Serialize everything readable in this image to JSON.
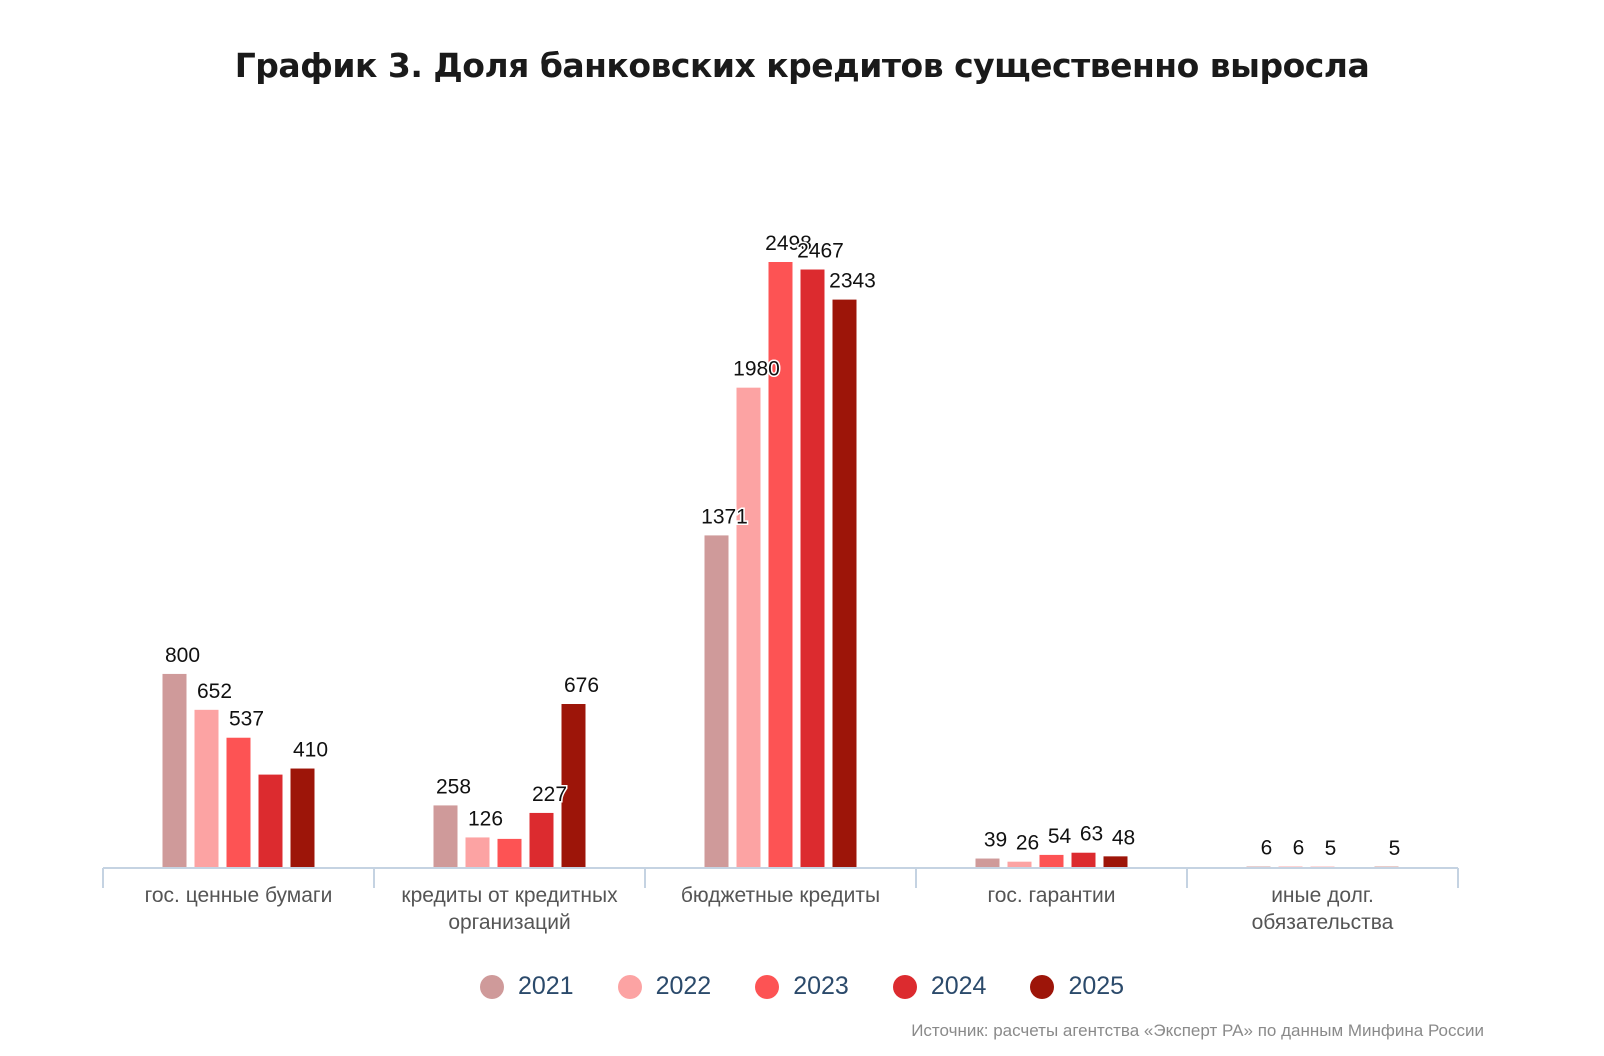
{
  "chart_data": {
    "type": "bar",
    "title": "График 3. Доля банковских кредитов существенно выросла",
    "categories": [
      [
        "гос. ценные бумаги"
      ],
      [
        "кредиты от кредитных",
        "организаций"
      ],
      [
        "бюджетные кредиты"
      ],
      [
        "гос. гарантии"
      ],
      [
        "иные долг.",
        "обязательства"
      ]
    ],
    "series": [
      {
        "name": "2021",
        "color": "#cf9a9a",
        "values": [
          800,
          258,
          1371,
          39,
          6
        ],
        "labels": [
          "800",
          "258",
          "1371",
          "39",
          "6"
        ]
      },
      {
        "name": "2022",
        "color": "#fca3a3",
        "values": [
          652,
          126,
          1980,
          26,
          6
        ],
        "labels": [
          "652",
          "126",
          "1980",
          "26",
          "6"
        ]
      },
      {
        "name": "2023",
        "color": "#fd5354",
        "values": [
          537,
          120,
          2498,
          54,
          5
        ],
        "labels": [
          "537",
          "",
          "2498",
          "54",
          "5"
        ]
      },
      {
        "name": "2024",
        "color": "#dc2b2f",
        "values": [
          385,
          227,
          2467,
          63,
          0
        ],
        "labels": [
          "",
          "227",
          "2467",
          "63",
          ""
        ]
      },
      {
        "name": "2025",
        "color": "#9d1509",
        "values": [
          410,
          676,
          2343,
          48,
          5
        ],
        "labels": [
          "410",
          "676",
          "2343",
          "48",
          "5"
        ]
      }
    ],
    "ylim": [
      0,
      2700
    ],
    "grid": false,
    "legend_position": "bottom"
  },
  "source": "Источник: расчеты агентства «Эксперт РА» по данным Минфина России"
}
